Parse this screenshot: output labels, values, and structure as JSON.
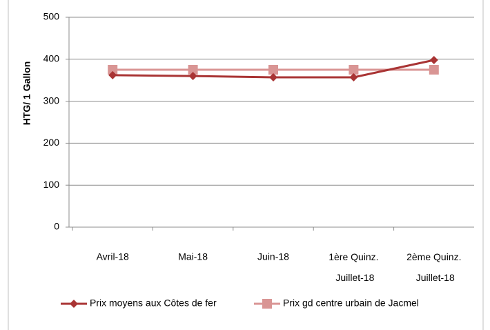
{
  "chart_data": {
    "type": "line",
    "y_label": "HTG/ 1 Gallon",
    "categories": [
      "Avril-18",
      "Mai-18",
      "Juin-18",
      "1ère Quinz. Juillet-18",
      "2ème Quinz. Juillet-18"
    ],
    "series": [
      {
        "name": "Prix moyens aux Côtes de fer",
        "color": "#a93434",
        "marker": "diamond",
        "values": [
          362,
          360,
          357,
          357,
          398
        ]
      },
      {
        "name": "Prix gd centre urbain de Jacmel",
        "color": "#d99594",
        "marker": "square",
        "values": [
          375,
          375,
          375,
          375,
          375
        ]
      }
    ],
    "ylim": [
      0,
      500
    ],
    "yticks": [
      0,
      100,
      200,
      300,
      400,
      500
    ],
    "grid": true,
    "legend": "bottom"
  }
}
